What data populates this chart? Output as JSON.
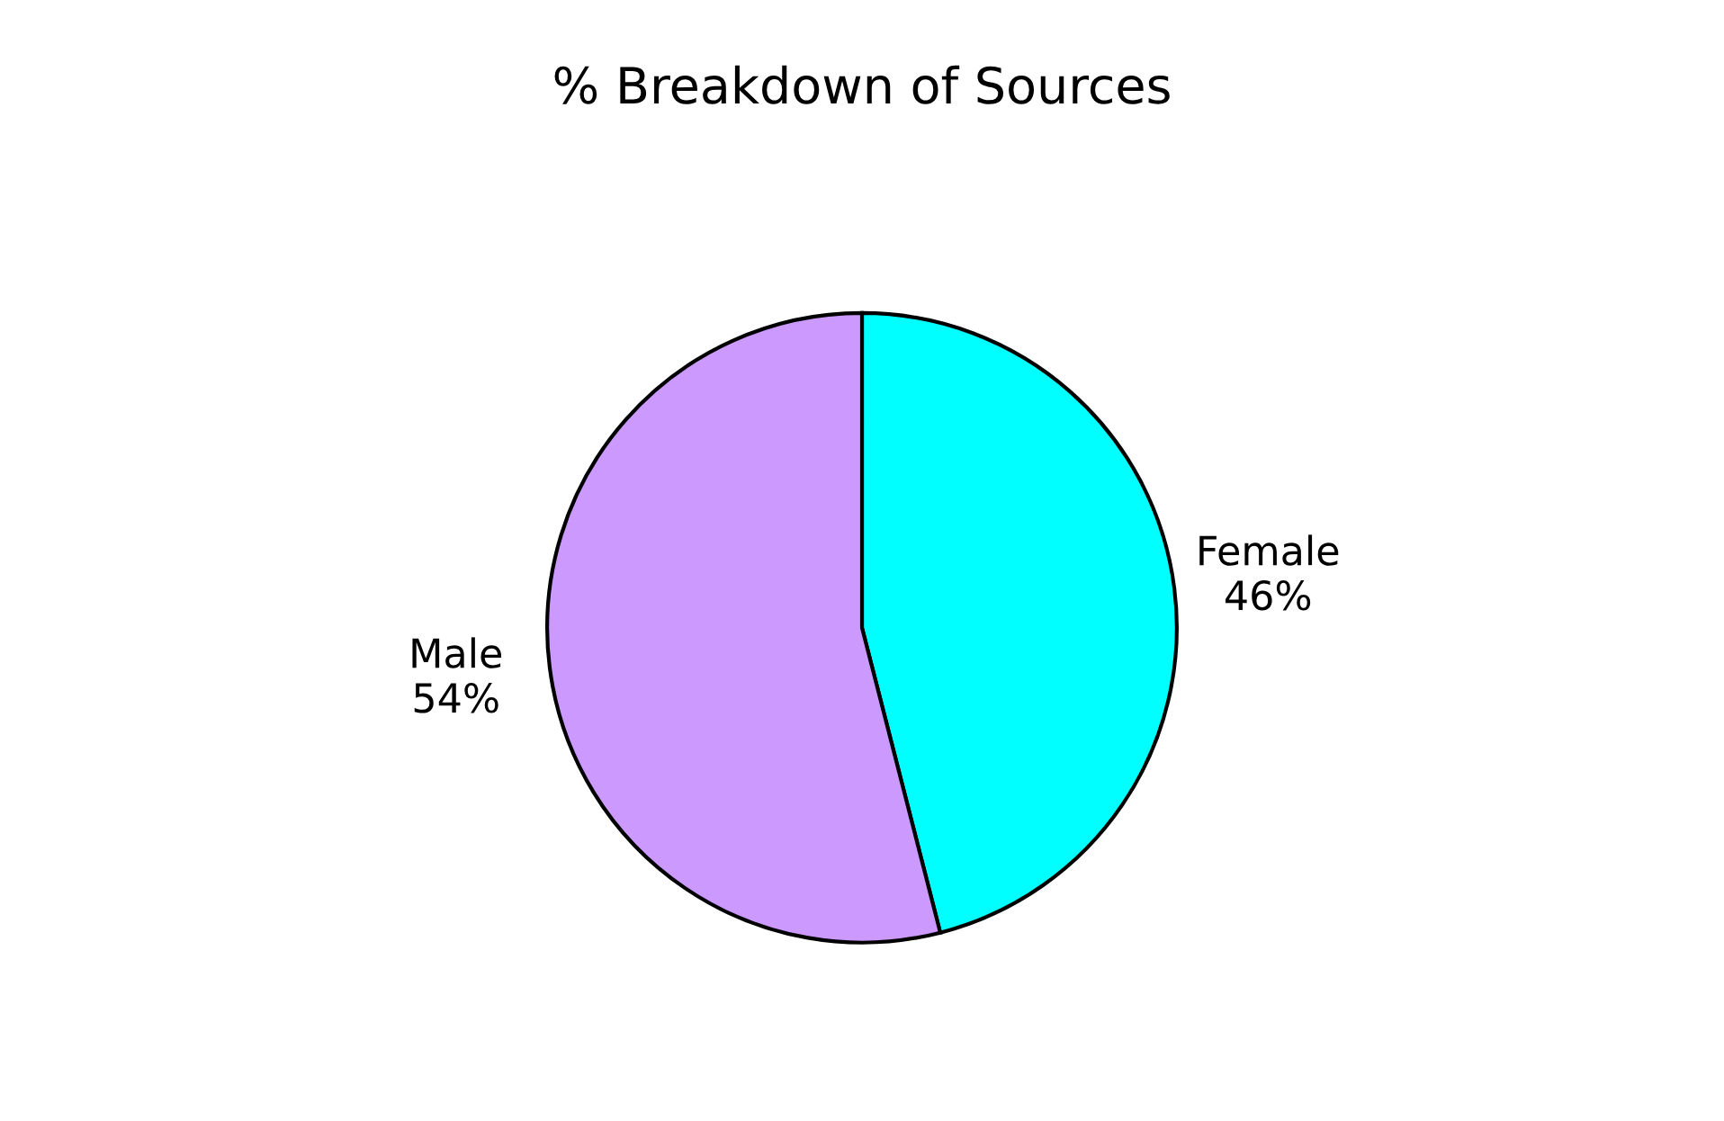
{
  "chart_data": {
    "type": "pie",
    "title": "% Breakdown of Sources",
    "categories": [
      "Female",
      "Male"
    ],
    "values": [
      46,
      54
    ],
    "colors": [
      "#00ffff",
      "#cc99ff"
    ],
    "value_labels": [
      "46%",
      "54%"
    ],
    "legend": false
  }
}
